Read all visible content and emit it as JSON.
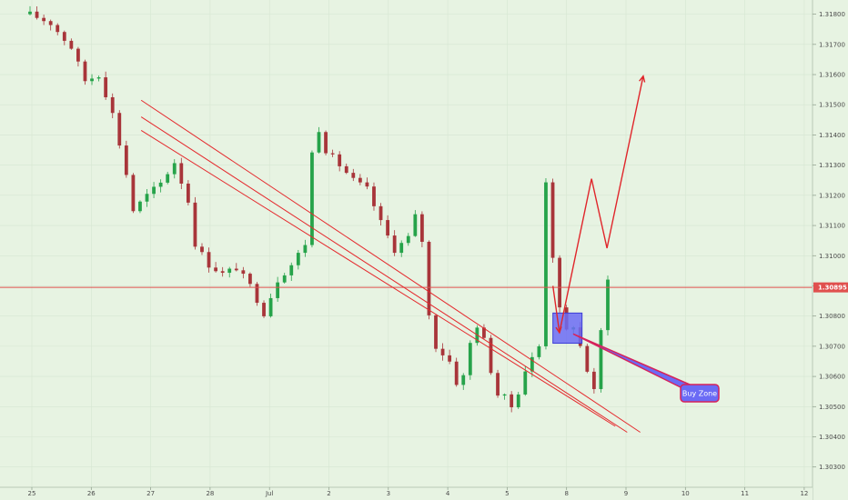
{
  "chart_data": {
    "type": "candlestick",
    "colors": {
      "background": "#e7f3e2",
      "grid": "#d6e6d2",
      "candle_up": "#26a34a",
      "candle_down": "#a8353a",
      "annotation": "#e0262b",
      "channel": "#e52a2e",
      "buy_zone_fill": "#6b6bf5",
      "buy_zone_stroke": "#3b3bd6",
      "callout_fill": "#6b6bf5",
      "callout_border": "#d6235b",
      "price_tag": "#e0504e"
    },
    "x_axis": {
      "ticks": [
        "25",
        "26",
        "27",
        "28",
        "Jul",
        "2",
        "3",
        "4",
        "5",
        "8",
        "9",
        "10",
        "11",
        "12"
      ]
    },
    "y_axis": {
      "ticks": [
        "1.31800",
        "1.31700",
        "1.31600",
        "1.31500",
        "1.31400",
        "1.31300",
        "1.31200",
        "1.31100",
        "1.31000",
        "1.30900",
        "1.30800",
        "1.30700",
        "1.30600",
        "1.30500",
        "1.30400",
        "1.30300"
      ],
      "range": [
        1.30275,
        1.31835
      ]
    },
    "current_price": {
      "value": 1.30895,
      "label": "1.30895"
    },
    "price_path": [
      [
        0,
        1.318
      ],
      [
        3,
        1.3177
      ],
      [
        6,
        1.3169
      ],
      [
        8,
        1.3158
      ],
      [
        10,
        1.316
      ],
      [
        12,
        1.3147
      ],
      [
        14,
        1.3127
      ],
      [
        15,
        1.3115
      ],
      [
        17,
        1.312
      ],
      [
        19,
        1.3124
      ],
      [
        21,
        1.3131
      ],
      [
        23,
        1.3118
      ],
      [
        24,
        1.3104
      ],
      [
        26,
        1.3097
      ],
      [
        28,
        1.3094
      ],
      [
        30,
        1.3096
      ],
      [
        32,
        1.309
      ],
      [
        34,
        1.3081
      ],
      [
        36,
        1.3092
      ],
      [
        38,
        1.3097
      ],
      [
        40,
        1.3104
      ],
      [
        41,
        1.3134
      ],
      [
        42,
        1.3142
      ],
      [
        43,
        1.3135
      ],
      [
        45,
        1.313
      ],
      [
        47,
        1.3125
      ],
      [
        49,
        1.3122
      ],
      [
        51,
        1.3111
      ],
      [
        53,
        1.3102
      ],
      [
        55,
        1.3106
      ],
      [
        56,
        1.3113
      ],
      [
        57,
        1.3105
      ],
      [
        58,
        1.308
      ],
      [
        59,
        1.307
      ],
      [
        61,
        1.3065
      ],
      [
        62,
        1.3058
      ],
      [
        63,
        1.306
      ],
      [
        64,
        1.3071
      ],
      [
        65,
        1.3077
      ],
      [
        66,
        1.3072
      ],
      [
        67,
        1.3062
      ],
      [
        68,
        1.3054
      ],
      [
        69,
        1.3053
      ],
      [
        70,
        1.305
      ],
      [
        71,
        1.3055
      ],
      [
        72,
        1.3062
      ],
      [
        73,
        1.3066
      ],
      [
        74,
        1.307
      ],
      [
        75,
        1.3125
      ],
      [
        76,
        1.31
      ],
      [
        77,
        1.3082
      ],
      [
        78,
        1.3075
      ],
      [
        79,
        1.3077
      ],
      [
        80,
        1.307
      ],
      [
        81,
        1.3062
      ],
      [
        82,
        1.3055
      ],
      [
        83,
        1.3075
      ],
      [
        84,
        1.3093
      ]
    ],
    "channel_lines": [
      [
        [
          1.84,
          1.31515
        ],
        [
          10.24,
          1.30415
        ]
      ],
      [
        [
          1.84,
          1.3146
        ],
        [
          10.02,
          1.30415
        ]
      ],
      [
        [
          1.84,
          1.31415
        ],
        [
          9.82,
          1.30435
        ]
      ]
    ],
    "projection_path": [
      [
        8.77,
        1.309
      ],
      [
        8.88,
        1.30745
      ],
      [
        9.42,
        1.31255
      ],
      [
        9.68,
        1.31025
      ],
      [
        10.29,
        1.31595
      ]
    ],
    "buy_zone": {
      "x": [
        8.77,
        9.26
      ],
      "y": [
        1.3071,
        1.3081
      ]
    },
    "callout": {
      "text": "Buy Zone",
      "pointer": [
        9.12,
        1.3074
      ]
    }
  }
}
